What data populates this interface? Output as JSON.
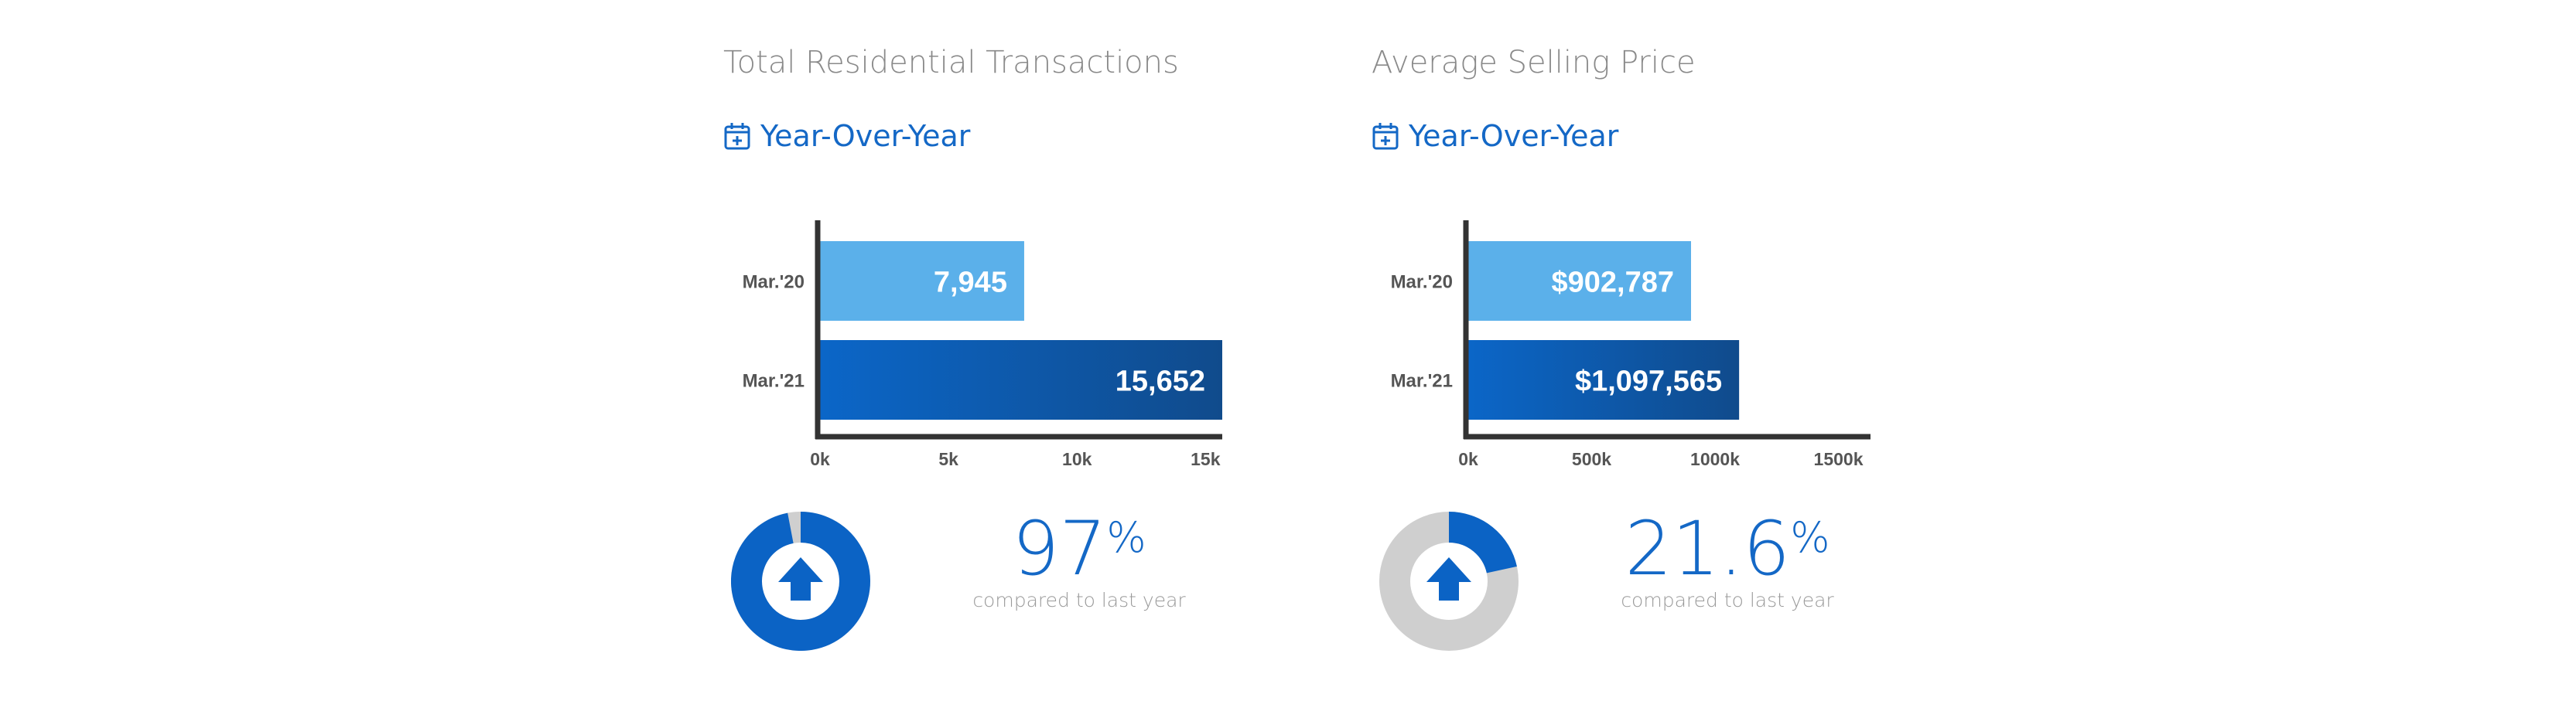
{
  "panels": [
    {
      "title": "Total Residential Transactions",
      "period_label": "Year-Over-Year",
      "period_icon": "calendar-plus-icon",
      "percent_value": "97",
      "percent_unit": "%",
      "comparison_text": "compared to last year",
      "donut": {
        "fraction": 0.97,
        "fill_color": "#0b63c5",
        "track_color": "#cfcfcf",
        "icon": "arrow-up-icon"
      }
    },
    {
      "title": "Average Selling Price",
      "period_label": "Year-Over-Year",
      "period_icon": "calendar-plus-icon",
      "percent_value": "21.6",
      "percent_unit": "%",
      "comparison_text": "compared to last year",
      "donut": {
        "fraction": 0.216,
        "fill_color": "#0b63c5",
        "track_color": "#cfcfcf",
        "icon": "arrow-up-icon"
      }
    }
  ],
  "chart_data": [
    {
      "type": "bar",
      "orientation": "horizontal",
      "title": "Total Residential Transactions",
      "categories": [
        "Mar.'20",
        "Mar.'21"
      ],
      "values": [
        7945,
        15652
      ],
      "value_labels": [
        "7,945",
        "15,652"
      ],
      "xlim": [
        0,
        15652
      ],
      "xticks": [
        0,
        5000,
        10000,
        15000
      ],
      "xtick_labels": [
        "0k",
        "5k",
        "10k",
        "15k"
      ],
      "grid": false,
      "colors": {
        "light": "#5bb0ea",
        "dark_start": "#0b66c8",
        "dark_end": "#104b8c",
        "axis": "#333333"
      }
    },
    {
      "type": "bar",
      "orientation": "horizontal",
      "title": "Average Selling Price",
      "categories": [
        "Mar.'20",
        "Mar.'21"
      ],
      "values": [
        902787,
        1097565
      ],
      "value_labels": [
        "$902,787",
        "$1,097,565"
      ],
      "xlim": [
        0,
        1630000
      ],
      "xticks": [
        0,
        500000,
        1000000,
        1500000
      ],
      "xtick_labels": [
        "0k",
        "500k",
        "1000k",
        "1500k"
      ],
      "grid": false,
      "colors": {
        "light": "#5bb0ea",
        "dark_start": "#0b66c8",
        "dark_end": "#104b8c",
        "axis": "#333333"
      }
    }
  ]
}
